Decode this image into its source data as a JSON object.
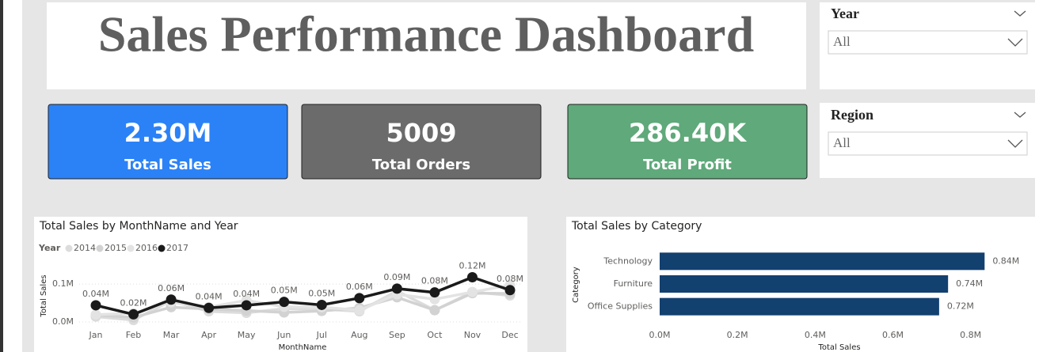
{
  "header": {
    "title": "Sales Performance Dashboard"
  },
  "kpis": [
    {
      "value": "2.30M",
      "label": "Total Sales",
      "color": "#2b82f7"
    },
    {
      "value": "5009",
      "label": "Total Orders",
      "color": "#6b6b6b"
    },
    {
      "value": "286.40K",
      "label": "Total Profit",
      "color": "#5fa97a"
    }
  ],
  "slicers": [
    {
      "label": "Year",
      "value": "All"
    },
    {
      "label": "Region",
      "value": "All"
    }
  ],
  "chart_data": [
    {
      "type": "line",
      "title": "Total Sales by MonthName and Year",
      "legend_title": "Year",
      "x_label": "MonthName",
      "y_label": "Total Sales",
      "categories": [
        "Jan",
        "Feb",
        "Mar",
        "Apr",
        "May",
        "Jun",
        "Jul",
        "Aug",
        "Sep",
        "Oct",
        "Nov",
        "Dec"
      ],
      "series": [
        {
          "name": "2014",
          "color": "#dcdcdc",
          "values": [
            0.014,
            0.005,
            0.056,
            0.028,
            0.024,
            0.035,
            0.034,
            0.028,
            0.082,
            0.031,
            0.079,
            0.07
          ]
        },
        {
          "name": "2015",
          "color": "#d2d2d2",
          "values": [
            0.018,
            0.012,
            0.039,
            0.034,
            0.03,
            0.025,
            0.029,
            0.037,
            0.065,
            0.031,
            0.076,
            0.075
          ]
        },
        {
          "name": "2016",
          "color": "#e3e3e3",
          "values": [
            0.019,
            0.023,
            0.052,
            0.039,
            0.057,
            0.04,
            0.039,
            0.031,
            0.073,
            0.06,
            0.079,
            0.097
          ]
        },
        {
          "name": "2017",
          "color": "#1a1a1a",
          "values": [
            0.044,
            0.02,
            0.059,
            0.037,
            0.044,
            0.053,
            0.045,
            0.063,
            0.088,
            0.078,
            0.118,
            0.084
          ],
          "value_labels": [
            "0.04M",
            "0.02M",
            "0.06M",
            "0.04M",
            "0.04M",
            "0.05M",
            "0.05M",
            "0.06M",
            "0.09M",
            "0.08M",
            "0.12M",
            "0.08M"
          ]
        }
      ],
      "ylim": [
        0,
        0.14
      ],
      "yticks": [
        {
          "value": 0,
          "label": "0.0M"
        },
        {
          "value": 0.1,
          "label": "0.1M"
        }
      ],
      "grid": true
    },
    {
      "type": "bar",
      "orientation": "horizontal",
      "title": "Total Sales by Category",
      "x_label": "Total Sales",
      "y_label": "Category",
      "categories": [
        "Technology",
        "Furniture",
        "Office Supplies"
      ],
      "values": [
        0.836,
        0.742,
        0.719
      ],
      "value_labels": [
        "0.84M",
        "0.74M",
        "0.72M"
      ],
      "color": "#12406f",
      "xlim": [
        0,
        0.87
      ],
      "xticks": [
        {
          "value": 0,
          "label": "0.0M"
        },
        {
          "value": 0.2,
          "label": "0.2M"
        },
        {
          "value": 0.4,
          "label": "0.4M"
        },
        {
          "value": 0.6,
          "label": "0.6M"
        },
        {
          "value": 0.8,
          "label": "0.8M"
        }
      ],
      "grid": false
    }
  ]
}
